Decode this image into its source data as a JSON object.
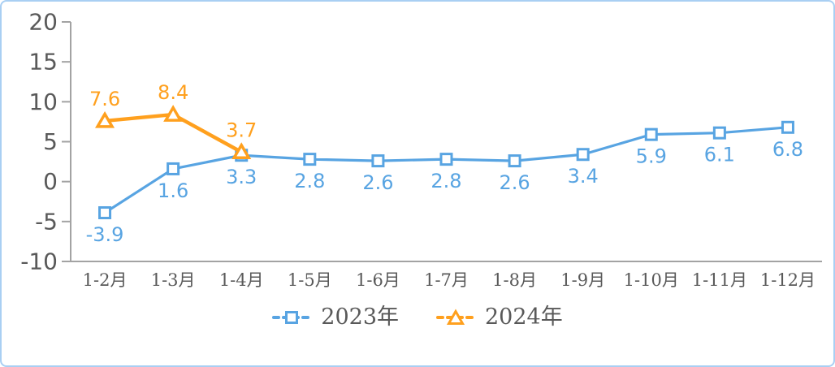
{
  "frame": {
    "border_color": "#A9CFF3",
    "background_color": "#FFFFFF"
  },
  "chart_data": {
    "type": "line",
    "categories": [
      "1-2月",
      "1-3月",
      "1-4月",
      "1-5月",
      "1-6月",
      "1-7月",
      "1-8月",
      "1-9月",
      "1-10月",
      "1-11月",
      "1-12月"
    ],
    "series": [
      {
        "name": "2023年",
        "color": "#58A4E2",
        "marker": "square",
        "label_position": "below",
        "values": [
          -3.9,
          1.6,
          3.3,
          2.8,
          2.6,
          2.8,
          2.6,
          3.4,
          5.9,
          6.1,
          6.8
        ]
      },
      {
        "name": "2024年",
        "color": "#FFA01E",
        "marker": "triangle",
        "label_position": "above",
        "values": [
          7.6,
          8.4,
          3.7
        ]
      }
    ],
    "ylim": [
      -10,
      20
    ],
    "yticks": [
      20,
      15,
      10,
      5,
      0,
      -5,
      -10
    ],
    "grid": false,
    "legend_position": "bottom",
    "data_labels_shown": true,
    "styles": {
      "axis_color": "#A3A3A3",
      "tick_label_color": "#595959",
      "legend_text_color": "#595959"
    }
  }
}
